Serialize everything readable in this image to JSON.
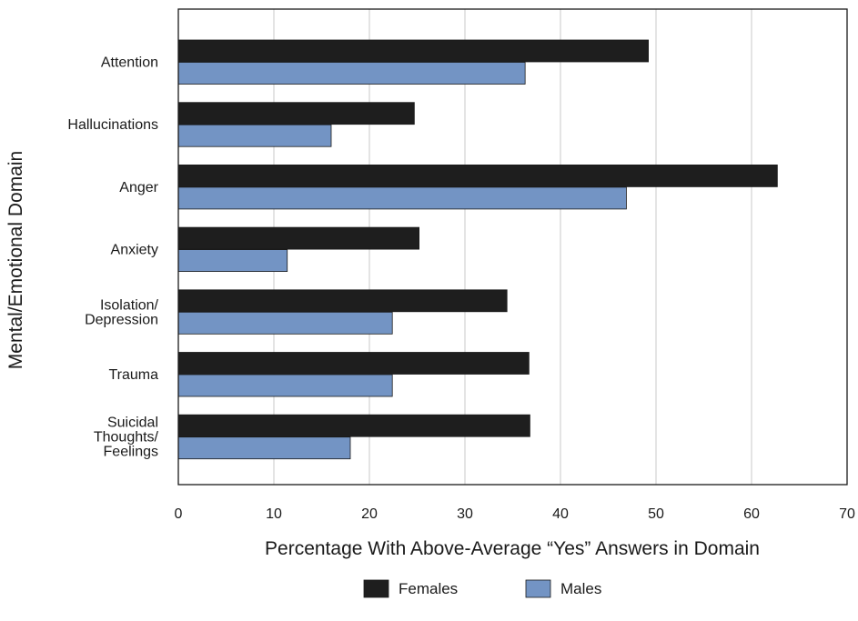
{
  "chart_data": {
    "type": "bar",
    "orientation": "horizontal",
    "title": "",
    "xlabel": "Percentage With Above-Average “Yes” Answers in Domain",
    "ylabel": "Mental/Emotional Domain",
    "xlim": [
      0,
      70
    ],
    "xticks": [
      0,
      10,
      20,
      30,
      40,
      50,
      60,
      70
    ],
    "grid": "vertical",
    "legend_position": "bottom-center",
    "categories": [
      [
        "Attention"
      ],
      [
        "Hallucinations"
      ],
      [
        "Anger"
      ],
      [
        "Anxiety"
      ],
      [
        "Isolation/",
        "Depression"
      ],
      [
        "Trauma"
      ],
      [
        "Suicidal",
        "Thoughts/",
        "Feelings"
      ]
    ],
    "series": [
      {
        "name": "Females",
        "color": "#1e1e1e",
        "values": [
          49.2,
          24.7,
          62.7,
          25.2,
          34.4,
          36.7,
          36.8
        ]
      },
      {
        "name": "Males",
        "color": "#7394c4",
        "values": [
          36.3,
          16.0,
          46.9,
          11.4,
          22.4,
          22.4,
          18.0
        ]
      }
    ]
  }
}
